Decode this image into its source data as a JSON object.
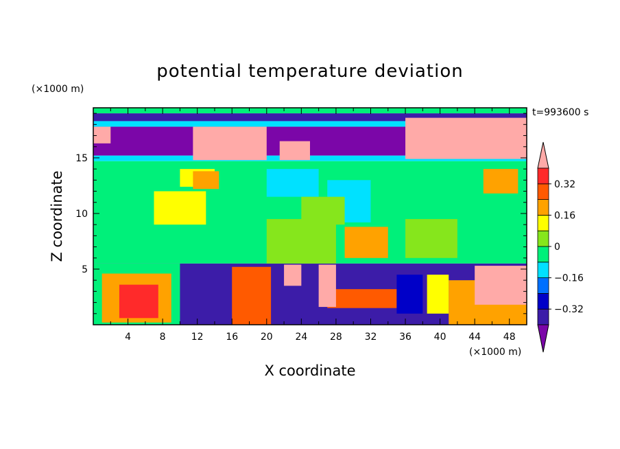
{
  "chart_data": {
    "type": "heatmap",
    "title": "potential temperature deviation",
    "xlabel": "X coordinate",
    "ylabel": "Z coordinate",
    "x_unit": "(×1000 m)",
    "y_unit": "(×1000 m)",
    "time_label": "t=993600 s",
    "xlim": [
      0,
      50
    ],
    "ylim": [
      0,
      19.5
    ],
    "x_ticks": [
      4,
      8,
      12,
      16,
      20,
      24,
      28,
      32,
      36,
      40,
      44,
      48
    ],
    "y_ticks": [
      5,
      10,
      15
    ],
    "colorbar": {
      "levels": [
        -0.4,
        -0.32,
        -0.24,
        -0.16,
        -0.08,
        0,
        0.08,
        0.16,
        0.24,
        0.32,
        0.4
      ],
      "labels": [
        "0.32",
        "0.16",
        "0",
        "−0.16",
        "−0.32"
      ],
      "label_values": [
        0.32,
        0.16,
        0,
        -0.16,
        -0.32
      ],
      "colors": [
        "#7b06a8",
        "#3c1ca8",
        "#0000c8",
        "#0070ff",
        "#00e1ff",
        "#00f07a",
        "#86e61c",
        "#ffff00",
        "#ffa200",
        "#ff5a00",
        "#ff2a2a",
        "#ffaaa8"
      ],
      "extend": "both"
    },
    "regions": [
      {
        "x": [
          0,
          50
        ],
        "z": [
          19.0,
          19.5
        ],
        "value": -0.02
      },
      {
        "x": [
          0,
          50
        ],
        "z": [
          18.3,
          19.0
        ],
        "value": -0.34
      },
      {
        "x": [
          0,
          50
        ],
        "z": [
          17.8,
          18.3
        ],
        "value": -0.1
      },
      {
        "x": [
          0,
          50
        ],
        "z": [
          15.2,
          17.8
        ],
        "value": -0.42
      },
      {
        "x": [
          0,
          50
        ],
        "z": [
          14.7,
          15.2
        ],
        "value": -0.14
      },
      {
        "x": [
          0,
          50
        ],
        "z": [
          5.5,
          14.7
        ],
        "value": -0.04
      },
      {
        "x": [
          0,
          50
        ],
        "z": [
          0,
          5.5
        ],
        "value": -0.38
      },
      {
        "x": [
          11.5,
          20
        ],
        "z": [
          14.8,
          17.8
        ],
        "value": 0.45
      },
      {
        "x": [
          36,
          50
        ],
        "z": [
          14.9,
          18.6
        ],
        "value": 0.45
      },
      {
        "x": [
          0,
          2
        ],
        "z": [
          16.3,
          17.8
        ],
        "value": 0.45
      },
      {
        "x": [
          21.5,
          25
        ],
        "z": [
          14.8,
          16.5
        ],
        "value": 0.45
      },
      {
        "x": [
          10,
          14
        ],
        "z": [
          12.4,
          14.0
        ],
        "value": 0.12
      },
      {
        "x": [
          11.5,
          14.5
        ],
        "z": [
          12.2,
          13.8
        ],
        "value": 0.18
      },
      {
        "x": [
          45,
          49
        ],
        "z": [
          11.8,
          14.0
        ],
        "value": 0.18
      },
      {
        "x": [
          20,
          26
        ],
        "z": [
          11.5,
          14.0
        ],
        "value": -0.1
      },
      {
        "x": [
          27,
          32
        ],
        "z": [
          9.2,
          13.0
        ],
        "value": -0.1
      },
      {
        "x": [
          7,
          13
        ],
        "z": [
          9.0,
          12.0
        ],
        "value": 0.08
      },
      {
        "x": [
          24,
          29
        ],
        "z": [
          9.0,
          11.5
        ],
        "value": 0.05
      },
      {
        "x": [
          29,
          34
        ],
        "z": [
          6.0,
          8.8
        ],
        "value": 0.18
      },
      {
        "x": [
          20,
          28
        ],
        "z": [
          5.5,
          9.5
        ],
        "value": 0.07
      },
      {
        "x": [
          36,
          42
        ],
        "z": [
          6.0,
          9.5
        ],
        "value": 0.07
      },
      {
        "x": [
          0,
          10
        ],
        "z": [
          0,
          5.5
        ],
        "value": -0.04
      },
      {
        "x": [
          1,
          9
        ],
        "z": [
          0.2,
          4.6
        ],
        "value": 0.22
      },
      {
        "x": [
          3,
          7.5
        ],
        "z": [
          0.6,
          3.6
        ],
        "value": 0.33
      },
      {
        "x": [
          16,
          20.5
        ],
        "z": [
          0,
          5.2
        ],
        "value": 0.28
      },
      {
        "x": [
          27,
          35
        ],
        "z": [
          1.5,
          3.2
        ],
        "value": 0.3
      },
      {
        "x": [
          41,
          50
        ],
        "z": [
          0,
          4.0
        ],
        "value": 0.2
      },
      {
        "x": [
          44,
          50
        ],
        "z": [
          1.8,
          5.3
        ],
        "value": 0.45
      },
      {
        "x": [
          35,
          38
        ],
        "z": [
          1.0,
          4.5
        ],
        "value": -0.3
      },
      {
        "x": [
          38.5,
          41
        ],
        "z": [
          1.0,
          4.5
        ],
        "value": 0.1
      },
      {
        "x": [
          26,
          28
        ],
        "z": [
          1.6,
          5.4
        ],
        "value": 0.45
      },
      {
        "x": [
          22,
          24
        ],
        "z": [
          3.5,
          5.4
        ],
        "value": 0.45
      }
    ]
  }
}
